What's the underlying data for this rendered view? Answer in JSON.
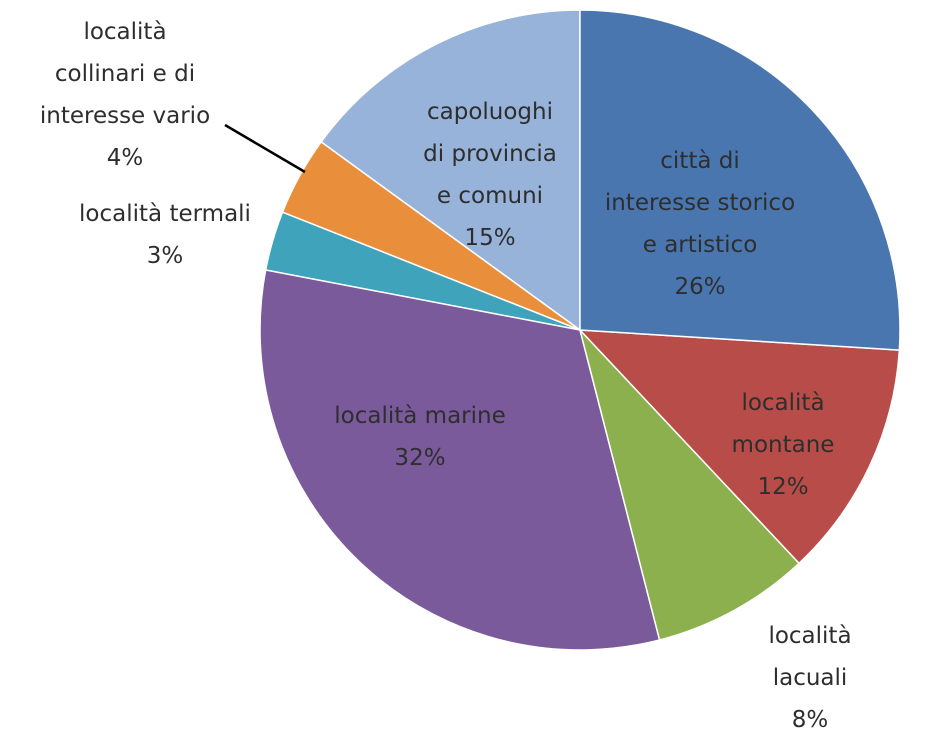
{
  "chart_data": {
    "type": "pie",
    "categories": [
      "città di\ninteresse storico\ne artistico",
      "località\nmontane",
      "località lacuali",
      "località marine",
      "località termali",
      "località\ncollinari e di\ninteresse vario",
      "capoluoghi\ndi provincia\ne comuni"
    ],
    "values": [
      26,
      12,
      8,
      32,
      3,
      4,
      15
    ],
    "value_labels": [
      "26%",
      "12%",
      "8%",
      "32%",
      "3%",
      "4%",
      "15%"
    ],
    "colors": [
      "#4a76b0",
      "#b84c48",
      "#8db04e",
      "#7a5a9a",
      "#3fa3bb",
      "#e98f3c",
      "#97b3da"
    ]
  }
}
